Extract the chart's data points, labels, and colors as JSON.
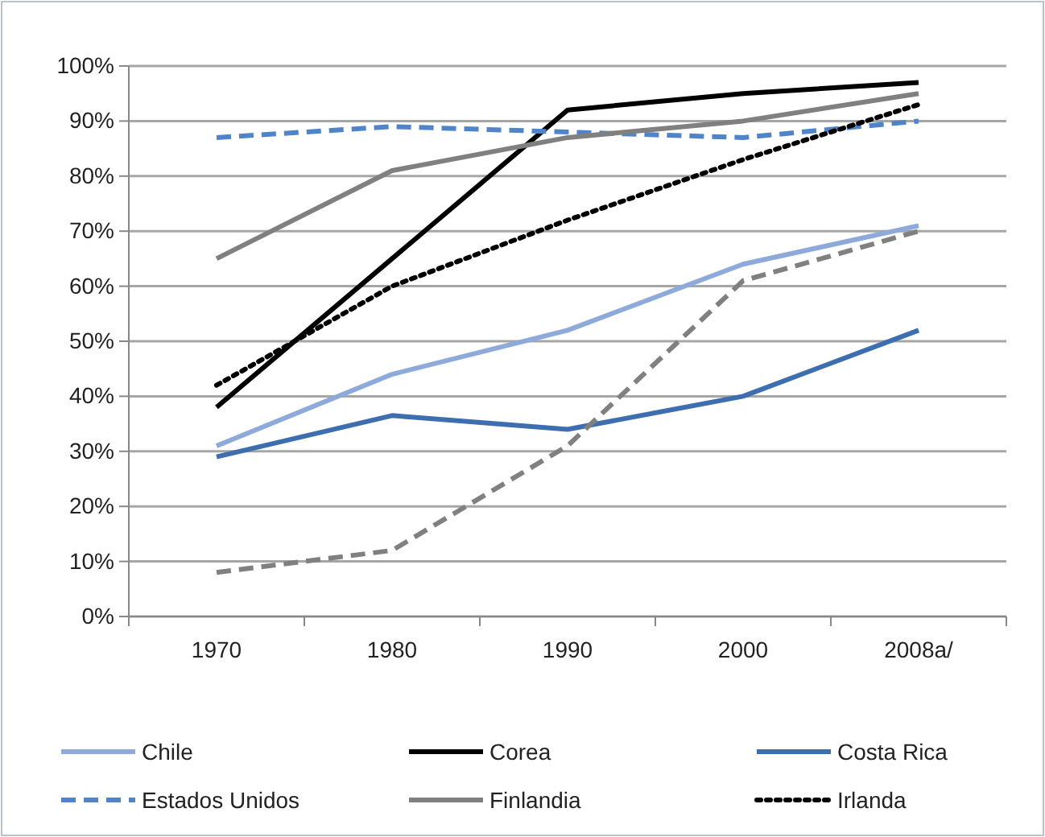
{
  "chart_data": {
    "type": "line",
    "categories": [
      "1970",
      "1980",
      "1990",
      "2000",
      "2008a/"
    ],
    "ylim": [
      0,
      100
    ],
    "yticks": [
      {
        "value": 0,
        "label": "0%"
      },
      {
        "value": 10,
        "label": "10%"
      },
      {
        "value": 20,
        "label": "20%"
      },
      {
        "value": 30,
        "label": "30%"
      },
      {
        "value": 40,
        "label": "40%"
      },
      {
        "value": 50,
        "label": "50%"
      },
      {
        "value": 60,
        "label": "60%"
      },
      {
        "value": 70,
        "label": "70%"
      },
      {
        "value": 80,
        "label": "80%"
      },
      {
        "value": 90,
        "label": "90%"
      },
      {
        "value": 100,
        "label": "100%"
      }
    ],
    "grid": "y",
    "legend": "bottom",
    "marker": "none",
    "series": [
      {
        "name": "Chile",
        "color": "#8eaadb",
        "values": [
          31,
          44,
          52,
          64,
          71
        ]
      },
      {
        "name": "Corea",
        "color": "#000000",
        "values": [
          38,
          65,
          92,
          95,
          97
        ]
      },
      {
        "name": "Costa Rica",
        "color": "#3d6fb0",
        "values": [
          29,
          36.5,
          34,
          40,
          52
        ]
      },
      {
        "name": "Estados Unidos",
        "color": "#4f84c9",
        "line_style": "dashed",
        "values": [
          87,
          89,
          88,
          87,
          90
        ]
      },
      {
        "name": "Finlandia",
        "color": "#808080",
        "values": [
          65,
          81,
          87,
          90,
          95
        ]
      },
      {
        "name": "Irlanda",
        "color": "#000000",
        "line_style": "dotted",
        "values": [
          42,
          60,
          72,
          83,
          93
        ]
      },
      {
        "color": "#808080",
        "line_style": "dashed",
        "values": [
          8,
          12,
          31,
          61,
          70
        ]
      }
    ]
  }
}
